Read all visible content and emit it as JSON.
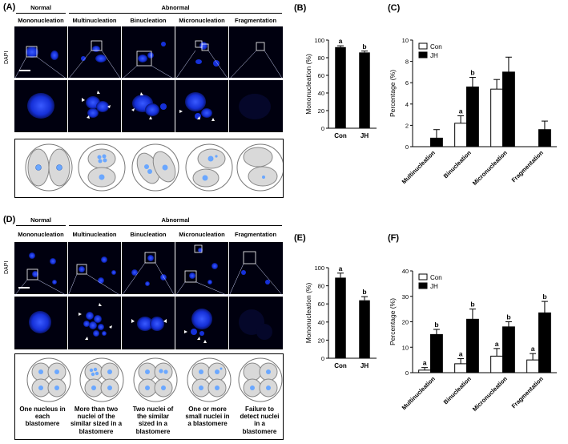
{
  "panels": {
    "A": "(A)",
    "B": "(B)",
    "C": "(C)",
    "D": "(D)",
    "E": "(E)",
    "F": "(F)"
  },
  "groups": {
    "normal": "Normal",
    "abnormal": "Abnormal"
  },
  "columns": [
    "Mononucleation",
    "Multinucleation",
    "Binucleation",
    "Micronucleation",
    "Fragmentation"
  ],
  "stain": "DAPI",
  "captions": [
    "One nucleus in each blastomere",
    "More than two nuclei of the similar sized in a blastomere",
    "Two nuclei of the similar sized in a blastomere",
    "One or more small nuclei in a blastomere",
    "Failure to detect nuclei in a blastomere"
  ],
  "colors": {
    "bar_jh": "#000000",
    "bar_con": "#ffffff",
    "dapi": "#1d3cff"
  },
  "chart_data": [
    {
      "id": "B",
      "type": "bar",
      "categories": [
        "Con",
        "JH"
      ],
      "values": [
        92,
        86
      ],
      "errors": [
        1.5,
        1.5
      ],
      "letters": [
        "a",
        "b"
      ],
      "ylabel": "Mononucleation (%)",
      "ylim": [
        0,
        100
      ],
      "yticks": [
        0,
        20,
        40,
        60,
        80,
        100
      ]
    },
    {
      "id": "C",
      "type": "bar",
      "categories": [
        "Multinucleation",
        "Binucleation",
        "Micronucleation",
        "Fragmentation"
      ],
      "series": [
        {
          "name": "Con",
          "values": [
            0,
            2.2,
            5.4,
            0
          ],
          "errors": [
            0,
            0.7,
            0.9,
            0
          ],
          "letters": [
            "",
            "a",
            "",
            ""
          ]
        },
        {
          "name": "JH",
          "values": [
            0.8,
            5.6,
            7.0,
            1.6
          ],
          "errors": [
            0.8,
            0.9,
            1.4,
            0.8
          ],
          "letters": [
            "",
            "b",
            "",
            ""
          ]
        }
      ],
      "ylabel": "Percentage (%)",
      "ylim": [
        0,
        10
      ],
      "yticks": [
        0,
        2,
        4,
        6,
        8,
        10
      ],
      "legend": "top-left"
    },
    {
      "id": "E",
      "type": "bar",
      "categories": [
        "Con",
        "JH"
      ],
      "values": [
        89,
        64
      ],
      "errors": [
        5,
        4
      ],
      "letters": [
        "a",
        "b"
      ],
      "ylabel": "Mononucleation (%)",
      "ylim": [
        0,
        100
      ],
      "yticks": [
        0,
        20,
        40,
        60,
        80,
        100
      ]
    },
    {
      "id": "F",
      "type": "bar",
      "categories": [
        "Multinucleation",
        "Binucleation",
        "Micronucleation",
        "Fragmentation"
      ],
      "series": [
        {
          "name": "Con",
          "values": [
            1,
            3.5,
            6.5,
            5
          ],
          "errors": [
            1,
            2,
            3,
            2.5
          ],
          "letters": [
            "a",
            "a",
            "a",
            "a"
          ]
        },
        {
          "name": "JH",
          "values": [
            15,
            21,
            18,
            23.5
          ],
          "errors": [
            2,
            4,
            2,
            4.5
          ],
          "letters": [
            "b",
            "b",
            "b",
            "b"
          ]
        }
      ],
      "ylabel": "Percentage (%)",
      "ylim": [
        0,
        40
      ],
      "yticks": [
        0,
        10,
        20,
        30,
        40
      ],
      "legend": "top-left"
    }
  ]
}
